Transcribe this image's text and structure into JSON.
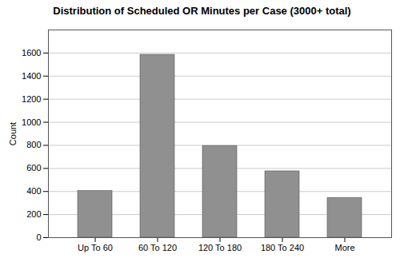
{
  "chart_data": {
    "type": "bar",
    "title": "Distribution of Scheduled OR Minutes per Case (3000+ total)",
    "categories": [
      "Up To 60",
      "60 To 120",
      "120 To 180",
      "180 To 240",
      "More"
    ],
    "values": [
      405,
      1585,
      795,
      575,
      345
    ],
    "color": "#909090",
    "ylabel": "Count",
    "ylim": [
      0,
      1800
    ],
    "yticks": [
      0,
      200,
      400,
      600,
      800,
      1000,
      1200,
      1400,
      1600
    ],
    "grid": true
  }
}
